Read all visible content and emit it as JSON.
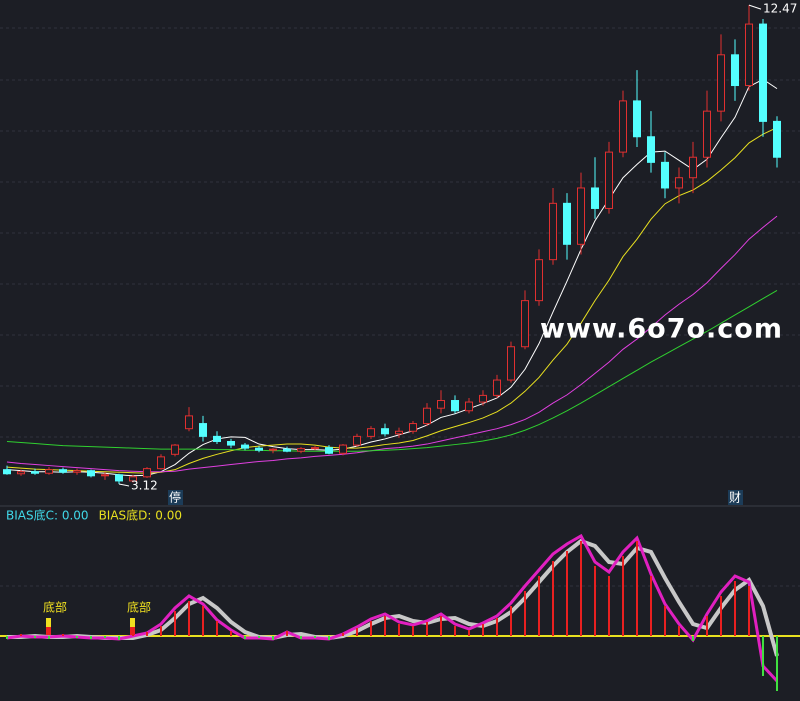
{
  "chart_data": [
    {
      "type": "candlestick",
      "categories": [
        null,
        null,
        null,
        null,
        null,
        null,
        null,
        null,
        null,
        null,
        null,
        null,
        "停",
        null,
        null,
        null,
        null,
        null,
        null,
        null,
        null,
        null,
        null,
        null,
        null,
        null,
        null,
        null,
        null,
        null,
        null,
        null,
        null,
        null,
        null,
        null,
        null,
        null,
        null,
        null,
        null,
        null,
        null,
        null,
        null,
        null,
        null,
        null,
        null,
        null,
        null,
        null,
        "财",
        null,
        null,
        null
      ],
      "open": [
        3.4,
        3.32,
        3.36,
        3.33,
        3.4,
        3.35,
        3.38,
        3.28,
        3.3,
        3.18,
        3.26,
        3.42,
        3.7,
        4.2,
        4.3,
        4.05,
        3.95,
        3.88,
        3.82,
        3.78,
        3.8,
        3.76,
        3.81,
        3.83,
        3.72,
        3.88,
        4.05,
        4.2,
        4.1,
        4.15,
        4.3,
        4.6,
        4.75,
        4.55,
        4.72,
        4.85,
        5.15,
        5.8,
        6.7,
        7.5,
        8.6,
        7.8,
        8.9,
        8.5,
        9.6,
        10.6,
        9.9,
        9.4,
        8.9,
        9.1,
        9.5,
        10.4,
        11.5,
        10.9,
        12.1,
        10.2
      ],
      "high": [
        3.48,
        3.4,
        3.42,
        3.45,
        3.44,
        3.42,
        3.4,
        3.35,
        3.32,
        3.3,
        3.45,
        3.7,
        3.9,
        4.62,
        4.45,
        4.15,
        4.0,
        3.92,
        3.86,
        3.82,
        3.85,
        3.84,
        3.86,
        3.88,
        3.9,
        4.1,
        4.25,
        4.3,
        4.22,
        4.35,
        4.7,
        4.95,
        4.85,
        4.8,
        4.95,
        5.25,
        5.9,
        6.9,
        7.7,
        8.9,
        8.8,
        9.2,
        9.5,
        9.8,
        10.8,
        11.2,
        10.4,
        9.6,
        9.3,
        9.8,
        10.8,
        11.9,
        11.8,
        12.47,
        12.2,
        10.3
      ],
      "low": [
        3.3,
        3.28,
        3.3,
        3.3,
        3.32,
        3.3,
        3.25,
        3.2,
        3.12,
        3.15,
        3.24,
        3.4,
        3.66,
        4.15,
        3.95,
        3.9,
        3.82,
        3.78,
        3.74,
        3.72,
        3.74,
        3.72,
        3.78,
        3.7,
        3.68,
        3.85,
        4.0,
        4.05,
        4.02,
        4.1,
        4.25,
        4.5,
        4.5,
        4.5,
        4.65,
        4.8,
        5.1,
        5.75,
        6.6,
        7.4,
        7.5,
        7.6,
        8.3,
        8.4,
        9.5,
        9.7,
        9.2,
        8.7,
        8.6,
        8.8,
        9.3,
        10.2,
        10.6,
        10.8,
        9.9,
        9.3
      ],
      "close": [
        3.32,
        3.36,
        3.33,
        3.4,
        3.35,
        3.38,
        3.28,
        3.3,
        3.18,
        3.26,
        3.42,
        3.65,
        3.88,
        4.45,
        4.05,
        3.95,
        3.88,
        3.82,
        3.78,
        3.8,
        3.76,
        3.81,
        3.83,
        3.72,
        3.88,
        4.05,
        4.2,
        4.1,
        4.15,
        4.3,
        4.6,
        4.75,
        4.55,
        4.72,
        4.85,
        5.15,
        5.8,
        6.7,
        7.5,
        8.6,
        7.8,
        8.9,
        8.5,
        9.6,
        10.6,
        9.9,
        9.4,
        8.9,
        9.1,
        9.5,
        10.4,
        11.5,
        10.9,
        12.1,
        10.2,
        9.5
      ],
      "up_color": "#e03030",
      "down_color": "#54ffff",
      "ylim": [
        2.71,
        12.57
      ],
      "max_label": "12.47",
      "min_label": "3.12",
      "series": [
        {
          "color": "#ffffff",
          "values": [
            3.4,
            3.38,
            3.36,
            3.36,
            3.35,
            3.36,
            3.35,
            3.33,
            3.3,
            3.28,
            3.29,
            3.36,
            3.5,
            3.72,
            3.89,
            4.0,
            4.04,
            4.03,
            3.9,
            3.85,
            3.81,
            3.79,
            3.79,
            3.78,
            3.8,
            3.86,
            3.94,
            4.0,
            4.08,
            4.16,
            4.27,
            4.42,
            4.49,
            4.59,
            4.69,
            4.8,
            5.01,
            5.36,
            5.86,
            6.48,
            7.08,
            7.7,
            8.26,
            8.68,
            9.1,
            9.36,
            9.6,
            9.62,
            9.44,
            9.26,
            9.46,
            9.88,
            10.28,
            10.88,
            11.02,
            10.84
          ]
        },
        {
          "color": "#e8e020",
          "values": [
            3.45,
            3.43,
            3.41,
            3.4,
            3.39,
            3.38,
            3.37,
            3.36,
            3.35,
            3.34,
            3.33,
            3.35,
            3.4,
            3.52,
            3.62,
            3.7,
            3.77,
            3.83,
            3.86,
            3.88,
            3.9,
            3.9,
            3.88,
            3.84,
            3.82,
            3.82,
            3.85,
            3.89,
            3.92,
            3.97,
            4.06,
            4.16,
            4.24,
            4.32,
            4.41,
            4.53,
            4.7,
            4.93,
            5.2,
            5.54,
            5.85,
            6.26,
            6.7,
            7.1,
            7.56,
            7.9,
            8.29,
            8.59,
            8.75,
            8.86,
            9.03,
            9.25,
            9.49,
            9.78,
            9.95,
            10.08
          ]
        },
        {
          "color": "#e040e0",
          "values": [
            3.55,
            3.52,
            3.5,
            3.48,
            3.46,
            3.44,
            3.42,
            3.4,
            3.38,
            3.37,
            3.36,
            3.36,
            3.37,
            3.41,
            3.44,
            3.47,
            3.5,
            3.53,
            3.56,
            3.58,
            3.61,
            3.63,
            3.66,
            3.68,
            3.7,
            3.73,
            3.77,
            3.81,
            3.83,
            3.86,
            3.9,
            3.96,
            4.02,
            4.08,
            4.14,
            4.2,
            4.28,
            4.38,
            4.52,
            4.7,
            4.86,
            5.06,
            5.28,
            5.5,
            5.75,
            5.95,
            6.18,
            6.42,
            6.63,
            6.82,
            7.05,
            7.33,
            7.6,
            7.9,
            8.13,
            8.35
          ]
        },
        {
          "color": "#30d030",
          "values": [
            3.95,
            3.93,
            3.91,
            3.89,
            3.87,
            3.86,
            3.85,
            3.84,
            3.83,
            3.82,
            3.81,
            3.8,
            3.8,
            3.8,
            3.8,
            3.79,
            3.79,
            3.78,
            3.78,
            3.77,
            3.77,
            3.76,
            3.76,
            3.76,
            3.76,
            3.76,
            3.77,
            3.78,
            3.79,
            3.81,
            3.83,
            3.86,
            3.89,
            3.92,
            3.96,
            4.01,
            4.08,
            4.17,
            4.28,
            4.41,
            4.55,
            4.7,
            4.86,
            5.02,
            5.18,
            5.34,
            5.5,
            5.65,
            5.8,
            5.95,
            6.1,
            6.26,
            6.42,
            6.58,
            6.74,
            6.9
          ]
        }
      ],
      "watermark": "www.6o7o.com"
    },
    {
      "type": "bar",
      "legend": [
        {
          "text": "BIAS底C: 0.00",
          "color": "#40d8e8"
        },
        {
          "text": "BIAS底D: 0.00",
          "color": "#e8e020"
        }
      ],
      "categories": [
        null,
        null,
        null,
        "底部",
        null,
        null,
        null,
        null,
        null,
        "底部",
        null,
        null,
        null,
        null,
        null,
        null,
        null,
        null,
        null,
        null,
        null,
        null,
        null,
        null,
        null,
        null,
        null,
        null,
        null,
        null,
        null,
        null,
        null,
        null,
        null,
        null,
        null,
        null,
        null,
        null,
        null,
        null,
        null,
        null,
        null,
        null,
        null,
        null,
        null,
        null,
        null,
        null,
        null,
        null,
        null,
        null
      ],
      "values": [
        -3,
        2,
        -2,
        -3,
        2,
        -2,
        -3,
        -2,
        -4,
        2,
        4,
        10,
        25,
        35,
        30,
        15,
        5,
        -3,
        -2,
        -4,
        5,
        -3,
        -2,
        -4,
        3,
        8,
        15,
        20,
        12,
        10,
        14,
        20,
        10,
        6,
        12,
        18,
        30,
        45,
        60,
        75,
        85,
        95,
        70,
        60,
        80,
        95,
        60,
        30,
        10,
        -5,
        20,
        40,
        55,
        50,
        -40,
        -55
      ],
      "up_color": "#e82020",
      "down_color": "#40e040",
      "ylim": [
        -65,
        121
      ],
      "series": [
        {
          "color": "#c8c8c8",
          "values": [
            -1,
            -1,
            0,
            -1,
            -1,
            0,
            -1,
            -2,
            -2,
            -2,
            1,
            6,
            18,
            32,
            38,
            28,
            14,
            4,
            -1,
            -2,
            1,
            2,
            -1,
            -2,
            0,
            5,
            12,
            18,
            20,
            15,
            13,
            17,
            18,
            12,
            10,
            15,
            24,
            38,
            54,
            70,
            84,
            95,
            90,
            74,
            72,
            88,
            84,
            58,
            34,
            12,
            8,
            28,
            46,
            56,
            30,
            -20
          ]
        },
        {
          "color": "#e020c0",
          "values": [
            -2,
            0,
            -1,
            -1,
            0,
            -1,
            -2,
            -2,
            -3,
            0,
            3,
            12,
            28,
            40,
            32,
            16,
            6,
            -2,
            -2,
            -3,
            4,
            -2,
            -2,
            -3,
            2,
            9,
            17,
            22,
            14,
            11,
            15,
            22,
            12,
            7,
            13,
            20,
            33,
            50,
            66,
            82,
            92,
            100,
            74,
            64,
            84,
            98,
            62,
            32,
            12,
            -4,
            22,
            44,
            60,
            54,
            -30,
            -45
          ]
        }
      ]
    }
  ]
}
